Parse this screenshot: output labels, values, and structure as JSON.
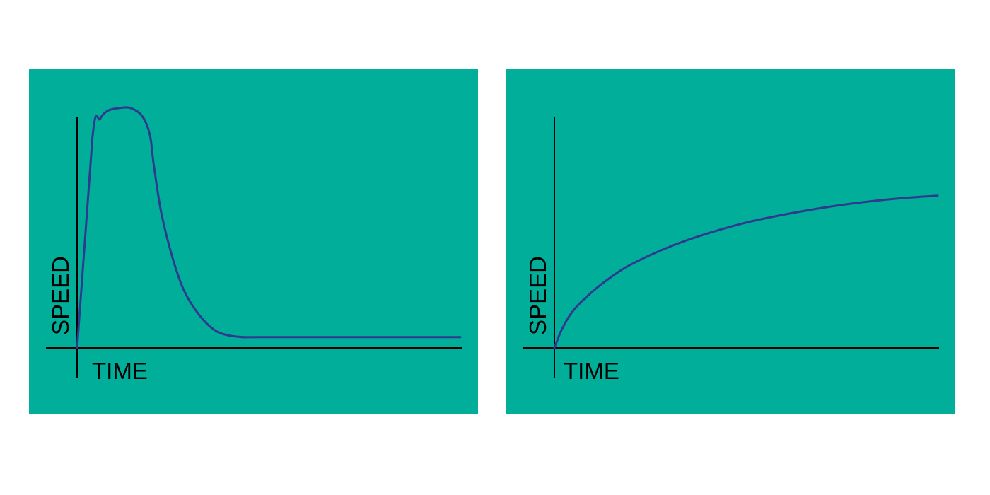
{
  "colors": {
    "panel_background": "#00ae99",
    "curve": "#2f3a8f",
    "axis": "#000000",
    "page_background": "#ffffff"
  },
  "chart_data": [
    {
      "type": "line",
      "xlabel": "TIME",
      "ylabel": "SPEED",
      "xlim": [
        0,
        100
      ],
      "ylim": [
        0,
        100
      ],
      "grid": false,
      "axis_tick_labels": false,
      "series": [
        {
          "x": [
            0,
            4,
            6,
            8,
            11,
            14,
            17,
            19,
            20,
            22,
            25,
            28,
            32,
            36,
            40,
            44,
            48,
            100
          ],
          "y": [
            0,
            78,
            85,
            88,
            89,
            89,
            86,
            79,
            68,
            50,
            33,
            21,
            12,
            6.5,
            4.5,
            4,
            4,
            4
          ]
        }
      ]
    },
    {
      "type": "line",
      "xlabel": "TIME",
      "ylabel": "SPEED",
      "xlim": [
        0,
        100
      ],
      "ylim": [
        0,
        100
      ],
      "grid": false,
      "axis_tick_labels": false,
      "series": [
        {
          "x": [
            0,
            2,
            5,
            10,
            15,
            20,
            30,
            40,
            50,
            60,
            70,
            80,
            90,
            100
          ],
          "y": [
            0,
            7,
            14,
            21,
            26.5,
            31,
            37.5,
            42.5,
            46.5,
            49.5,
            52,
            54,
            55.5,
            56.5
          ]
        }
      ]
    }
  ]
}
